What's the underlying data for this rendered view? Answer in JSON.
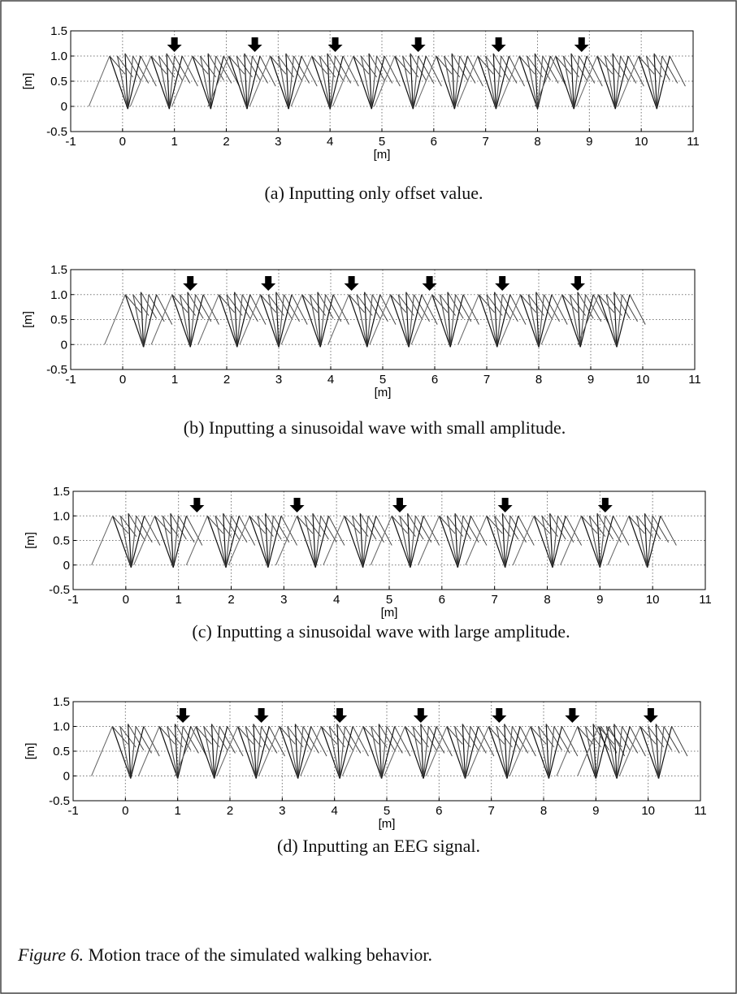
{
  "chart_data": [
    {
      "type": "stick-trace",
      "caption": "(a) Inputting only offset value.",
      "xlabel": "[m]",
      "ylabel": "[m]",
      "xlim": [
        -1,
        11
      ],
      "ylim": [
        -0.5,
        1.5
      ],
      "xticks": [
        -1,
        0,
        1,
        2,
        3,
        4,
        5,
        6,
        7,
        8,
        9,
        10,
        11
      ],
      "yticks": [
        -0.5,
        0,
        0.5,
        {
          "value": 1,
          "label": "1.0"
        },
        1.5
      ],
      "grid": true,
      "steps": [
        0.1,
        0.9,
        1.7,
        2.4,
        3.2,
        4.0,
        4.8,
        5.6,
        6.4,
        7.2,
        8.0,
        8.7,
        9.5,
        10.3
      ],
      "arrows": [
        1.0,
        2.55,
        4.1,
        5.7,
        7.25,
        8.85
      ]
    },
    {
      "type": "stick-trace",
      "caption": "(b) Inputting a sinusoidal wave with small amplitude.",
      "xlabel": "[m]",
      "ylabel": "[m]",
      "xlim": [
        -1,
        11
      ],
      "ylim": [
        -0.5,
        1.5
      ],
      "xticks": [
        -1,
        0,
        1,
        2,
        3,
        4,
        5,
        6,
        7,
        8,
        9,
        10,
        11
      ],
      "yticks": [
        -0.5,
        0,
        0.5,
        {
          "value": 1,
          "label": "1.0"
        },
        1.5
      ],
      "grid": true,
      "steps": [
        0.4,
        1.3,
        2.2,
        3.0,
        3.8,
        4.7,
        5.5,
        6.3,
        7.2,
        8.0,
        8.8,
        9.5
      ],
      "arrows": [
        1.3,
        2.8,
        4.4,
        5.9,
        7.3,
        8.75
      ]
    },
    {
      "type": "stick-trace",
      "caption": "(c) Inputting a sinusoidal wave with large amplitude.",
      "xlabel": "[m]",
      "ylabel": "[m]",
      "xlim": [
        -1,
        11
      ],
      "ylim": [
        -0.5,
        1.5
      ],
      "xticks": [
        -1,
        0,
        1,
        2,
        3,
        4,
        5,
        6,
        7,
        8,
        9,
        10,
        11
      ],
      "yticks": [
        -0.5,
        0,
        0.5,
        {
          "value": 1,
          "label": "1.0"
        },
        1.5
      ],
      "grid": true,
      "steps": [
        0.1,
        0.9,
        1.9,
        2.7,
        3.6,
        4.5,
        5.4,
        6.3,
        7.2,
        8.1,
        9.0,
        9.9
      ],
      "arrows": [
        1.35,
        3.25,
        5.2,
        7.2,
        9.1
      ]
    },
    {
      "type": "stick-trace",
      "caption": "(d) Inputting an EEG signal.",
      "xlabel": "[m]",
      "ylabel": "[m]",
      "xlim": [
        -1,
        11
      ],
      "ylim": [
        -0.5,
        1.5
      ],
      "xticks": [
        -1,
        0,
        1,
        2,
        3,
        4,
        5,
        6,
        7,
        8,
        9,
        10,
        11
      ],
      "yticks": [
        -0.5,
        0,
        0.5,
        {
          "value": 1,
          "label": "1.0"
        },
        1.5
      ],
      "grid": true,
      "steps": [
        0.1,
        1.0,
        1.7,
        2.5,
        3.3,
        4.1,
        4.9,
        5.7,
        6.5,
        7.3,
        8.1,
        9.0,
        9.4,
        10.2
      ],
      "arrows": [
        1.1,
        2.6,
        4.1,
        5.65,
        7.15,
        8.55,
        10.05
      ]
    }
  ],
  "figure_label": "Figure 6.",
  "figure_caption": "Motion trace of the simulated walking behavior."
}
